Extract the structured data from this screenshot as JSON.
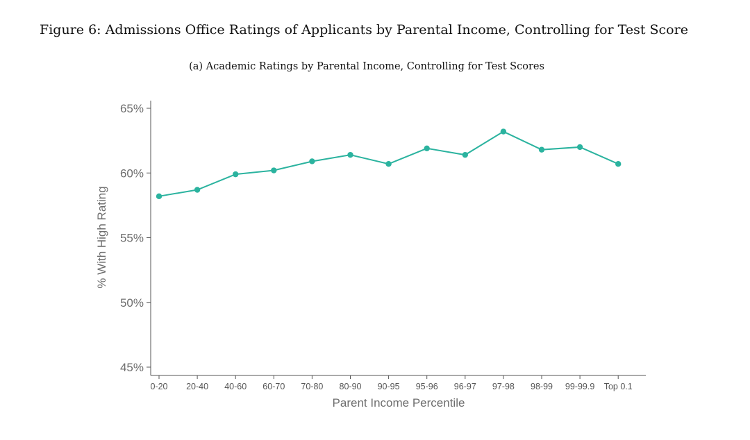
{
  "figure_title": "Figure 6: Admissions Office Ratings of Applicants by Parental Income, Controlling for Test Score",
  "panel_title": "(a)  Academic Ratings by Parental Income, Controlling for Test Scores",
  "chart_data": {
    "type": "line",
    "title": "(a)  Academic Ratings by Parental Income, Controlling for Test Scores",
    "xlabel": "Parent Income Percentile",
    "ylabel": "% With High Rating",
    "categories": [
      "0-20",
      "20-40",
      "40-60",
      "60-70",
      "70-80",
      "80-90",
      "90-95",
      "95-96",
      "96-97",
      "97-98",
      "98-99",
      "99-99.9",
      "Top 0.1"
    ],
    "series": [
      {
        "values": [
          58.2,
          58.7,
          59.9,
          60.2,
          60.9,
          61.4,
          60.7,
          61.9,
          61.4,
          63.2,
          61.8,
          62.0,
          60.7
        ]
      }
    ],
    "ylim": [
      45,
      65
    ],
    "yticks": [
      "45%",
      "50%",
      "55%",
      "60%",
      "65%"
    ],
    "ytick_values": [
      45,
      50,
      55,
      60,
      65
    ],
    "grid": false,
    "line_color": "#2bb39f"
  }
}
